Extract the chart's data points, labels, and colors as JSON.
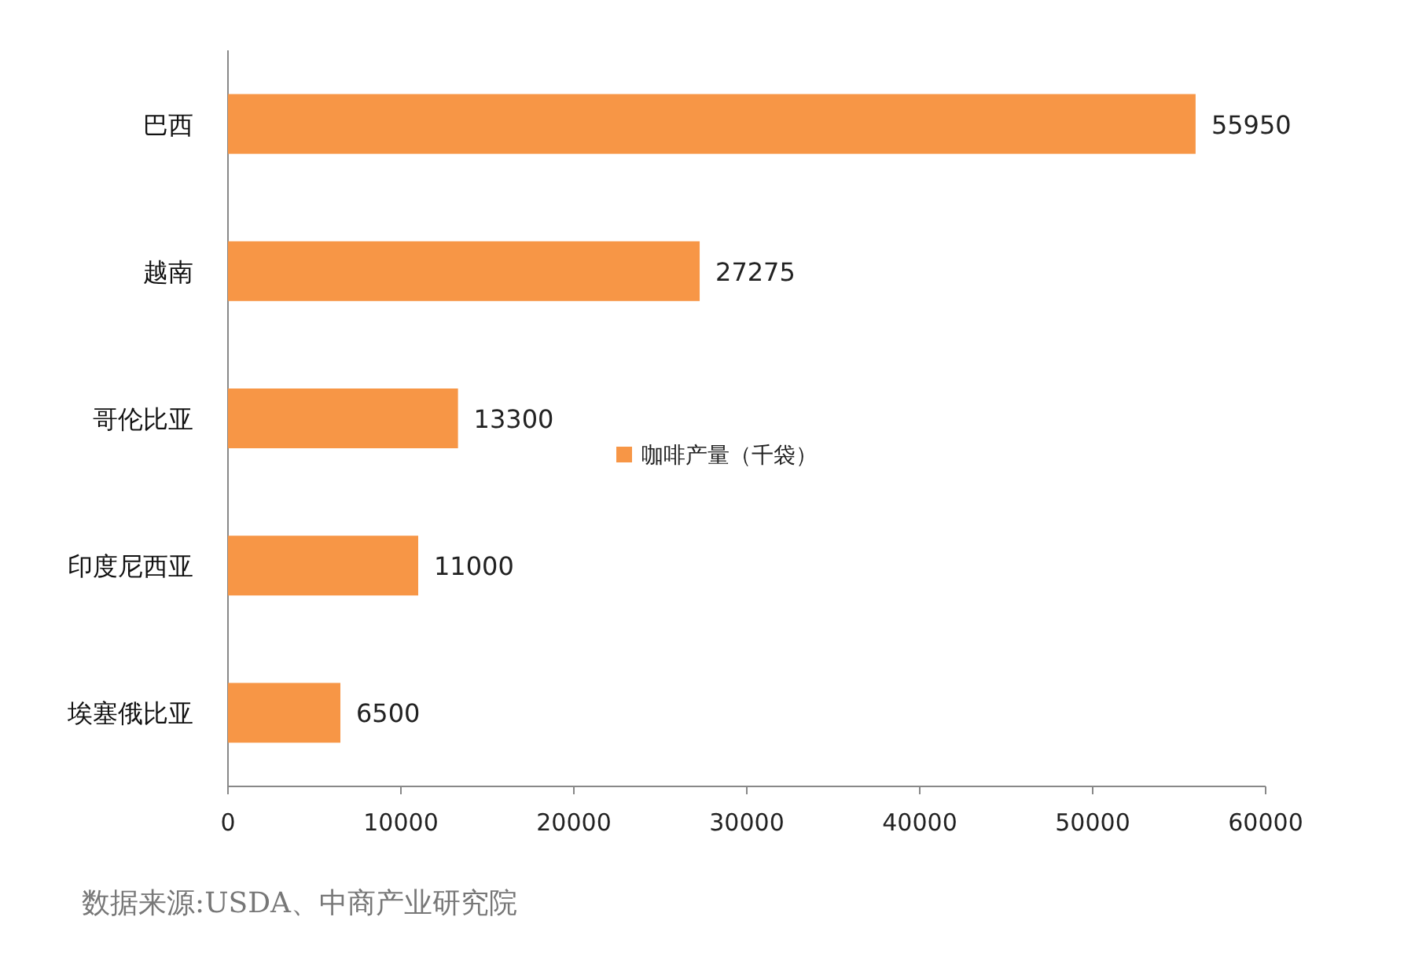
{
  "chart_data": {
    "type": "bar",
    "orientation": "horizontal",
    "categories": [
      "巴西",
      "越南",
      "哥伦比亚",
      "印度尼西亚",
      "埃塞俄比亚"
    ],
    "series": [
      {
        "name": "咖啡产量（千袋）",
        "color": "#f79646",
        "values": [
          55950,
          27275,
          13300,
          11000,
          6500
        ]
      }
    ],
    "xlim": [
      0,
      60000
    ],
    "xticks": [
      0,
      10000,
      20000,
      30000,
      40000,
      50000,
      60000
    ],
    "data_labels": true,
    "legend": "right",
    "grid": false,
    "annotations": [
      "数据来源:USDA、中商产业研究院"
    ]
  }
}
